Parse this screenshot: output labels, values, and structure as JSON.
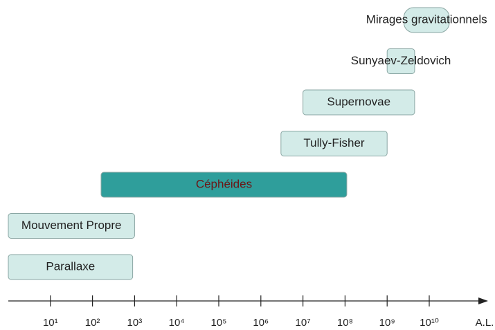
{
  "chart_data": {
    "type": "range",
    "categories": [
      "Parallaxe",
      "Mouvement Propre",
      "Céphéides",
      "Tully-Fisher",
      "Supernovae",
      "Sunyaev-Zeldovich",
      "Mirages gravitationnels"
    ],
    "values": [
      [
        1,
        900
      ],
      [
        1,
        1000
      ],
      [
        160,
        110000000
      ],
      [
        3000000,
        1000000000
      ],
      [
        10000000,
        4500000000
      ],
      [
        1000000000,
        4500000000
      ],
      [
        2500000000,
        30000000000
      ]
    ],
    "colors": [
      "#d3ebe8",
      "#d3ebe8",
      "#2f9e9b",
      "#d3ebe8",
      "#d3ebe8",
      "#d3ebe8",
      "#d3ebe8"
    ],
    "label_colors": [
      "#222222",
      "#222222",
      "#6b1515",
      "#222222",
      "#222222",
      "#222222",
      "#222222"
    ],
    "xscale": "log",
    "xlim": [
      1,
      250000000000
    ],
    "xticks": [
      {
        "value": 10,
        "label": "10¹"
      },
      {
        "value": 100,
        "label": "10²"
      },
      {
        "value": 1000,
        "label": "10³"
      },
      {
        "value": 10000,
        "label": "10⁴"
      },
      {
        "value": 100000,
        "label": "10⁵"
      },
      {
        "value": 1000000,
        "label": "10⁶"
      },
      {
        "value": 10000000,
        "label": "10⁷"
      },
      {
        "value": 100000000,
        "label": "10⁸"
      },
      {
        "value": 1000000000,
        "label": "10⁹"
      },
      {
        "value": 10000000000,
        "label": "10¹⁰"
      }
    ],
    "xlabel": "A.L."
  }
}
